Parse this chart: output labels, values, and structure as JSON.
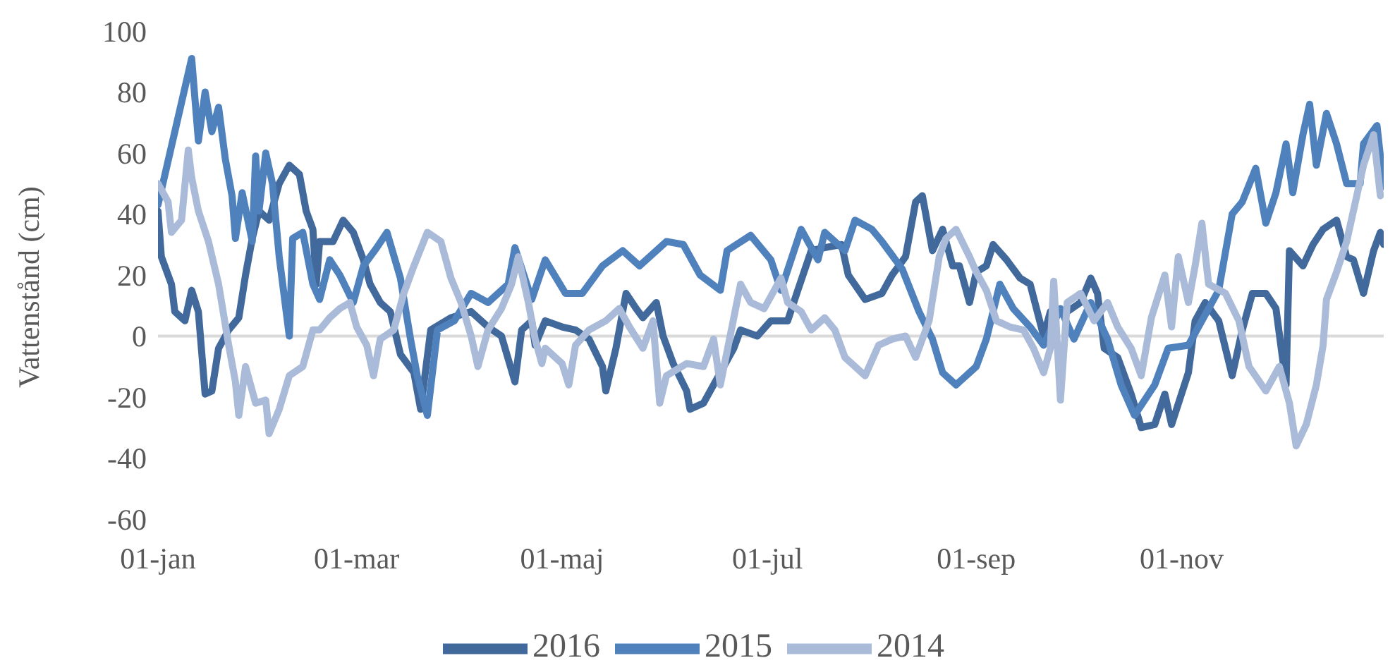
{
  "chart_data": {
    "type": "line",
    "ylabel": "Vattenstånd (cm)",
    "xlim": [
      "--01-01",
      "--12-31"
    ],
    "xticks": [
      {
        "value": "--01-01",
        "label": "01-jan"
      },
      {
        "value": "--03-01",
        "label": "01-mar"
      },
      {
        "value": "--05-01",
        "label": "01-maj"
      },
      {
        "value": "--07-01",
        "label": "01-jul"
      },
      {
        "value": "--09-01",
        "label": "01-sep"
      },
      {
        "value": "--11-01",
        "label": "01-nov"
      }
    ],
    "ylim": [
      -60,
      100
    ],
    "yticks": [
      -60,
      -40,
      -20,
      0,
      20,
      40,
      60,
      80,
      100
    ],
    "grid": false,
    "legend": "bottom",
    "marker": "none",
    "line_style": "solid",
    "ref_lines": [
      {
        "axis": "y",
        "value": 0,
        "color": "#d9d9d9"
      }
    ],
    "series": [
      {
        "name": "2016",
        "color": "#41699c",
        "x": [
          "--01-01",
          "--01-02",
          "--01-05",
          "--01-06",
          "--01-09",
          "--01-11",
          "--01-13",
          "--01-15",
          "--01-17",
          "--01-19",
          "--01-22",
          "--01-25",
          "--01-27",
          "--01-29",
          "--01-31",
          "--02-03",
          "--02-06",
          "--02-09",
          "--02-12",
          "--02-14",
          "--02-16",
          "--02-17",
          "--02-18",
          "--02-22",
          "--02-25",
          "--02-28",
          "--03-03",
          "--03-05",
          "--03-08",
          "--03-11",
          "--03-14",
          "--03-18",
          "--03-20",
          "--03-23",
          "--03-29",
          "--04-04",
          "--04-09",
          "--04-13",
          "--04-17",
          "--04-19",
          "--04-22",
          "--04-23",
          "--04-26",
          "--05-01",
          "--05-05",
          "--05-09",
          "--05-13",
          "--05-14",
          "--05-17",
          "--05-20",
          "--05-23",
          "--05-25",
          "--05-29",
          "--05-31",
          "--06-03",
          "--06-07",
          "--06-08",
          "--06-12",
          "--06-17",
          "--06-21",
          "--06-23",
          "--06-28",
          "--07-02",
          "--07-07",
          "--07-10",
          "--07-14",
          "--07-18",
          "--07-23",
          "--07-25",
          "--07-30",
          "--08-04",
          "--08-07",
          "--08-11",
          "--08-14",
          "--08-16",
          "--08-19",
          "--08-22",
          "--08-25",
          "--08-27",
          "--08-30",
          "--09-01",
          "--09-04",
          "--09-06",
          "--09-10",
          "--09-14",
          "--09-17",
          "--09-21",
          "--09-23",
          "--09-28",
          "--10-02",
          "--10-05",
          "--10-07",
          "--10-09",
          "--10-13",
          "--10-17",
          "--10-20",
          "--10-24",
          "--10-27",
          "--10-29",
          "--11-03",
          "--11-05",
          "--11-08",
          "--11-12",
          "--11-16",
          "--11-19",
          "--11-22",
          "--11-26",
          "--11-29",
          "--12-02",
          "--12-03",
          "--12-07",
          "--12-10",
          "--12-13",
          "--12-17",
          "--12-20",
          "--12-22",
          "--12-25",
          "--12-28",
          "--12-30",
          "--12-31"
        ],
        "values": [
          41,
          26,
          17,
          8,
          5,
          15,
          8,
          -19,
          -18,
          -4,
          2,
          6,
          20,
          32,
          41,
          38,
          50,
          56,
          53,
          41,
          35,
          17,
          31,
          31,
          38,
          34,
          25,
          17,
          11,
          8,
          -6,
          -12,
          -24,
          2,
          6,
          8,
          3,
          0,
          -15,
          2,
          5,
          -3,
          5,
          3,
          2,
          -1,
          -10,
          -18,
          -4,
          14,
          9,
          6,
          11,
          0,
          -9,
          -18,
          -24,
          -22,
          -12,
          -4,
          2,
          0,
          5,
          5,
          15,
          28,
          29,
          30,
          20,
          12,
          14,
          20,
          26,
          44,
          46,
          28,
          35,
          23,
          23,
          11,
          21,
          23,
          30,
          25,
          19,
          17,
          0,
          8,
          8,
          11,
          19,
          14,
          -4,
          -7,
          -19,
          -30,
          -29,
          -19,
          -29,
          -12,
          5,
          11,
          5,
          -13,
          2,
          14,
          14,
          9,
          -16,
          28,
          23,
          30,
          35,
          38,
          26,
          25,
          14,
          28,
          34,
          30
        ]
      },
      {
        "name": "2015",
        "color": "#4f81bd",
        "x": [
          "--01-01",
          "--01-11",
          "--01-13",
          "--01-15",
          "--01-17",
          "--01-19",
          "--01-21",
          "--01-23",
          "--01-24",
          "--01-26",
          "--01-29",
          "--01-30",
          "--01-31",
          "--02-02",
          "--02-04",
          "--02-06",
          "--02-09",
          "--02-10",
          "--02-13",
          "--02-16",
          "--02-18",
          "--02-21",
          "--02-24",
          "--02-28",
          "--03-03",
          "--03-07",
          "--03-10",
          "--03-14",
          "--03-17",
          "--03-19",
          "--03-22",
          "--03-25",
          "--03-30",
          "--04-04",
          "--04-09",
          "--04-15",
          "--04-17",
          "--04-22",
          "--04-26",
          "--05-02",
          "--05-07",
          "--05-13",
          "--05-19",
          "--05-24",
          "--06-01",
          "--06-06",
          "--06-11",
          "--06-17",
          "--06-19",
          "--06-26",
          "--07-02",
          "--07-05",
          "--07-11",
          "--07-16",
          "--07-18",
          "--07-24",
          "--07-27",
          "--08-01",
          "--08-04",
          "--08-10",
          "--08-15",
          "--08-19",
          "--08-22",
          "--08-26",
          "--08-27",
          "--09-01",
          "--09-04",
          "--09-06",
          "--09-08",
          "--09-12",
          "--09-17",
          "--09-21",
          "--09-26",
          "--09-30",
          "--10-05",
          "--10-10",
          "--10-14",
          "--10-18",
          "--10-24",
          "--10-28",
          "--11-03",
          "--11-07",
          "--11-12",
          "--11-16",
          "--11-19",
          "--11-23",
          "--11-26",
          "--11-29",
          "--12-02",
          "--12-04",
          "--12-07",
          "--12-09",
          "--12-11",
          "--12-14",
          "--12-17",
          "--12-20",
          "--12-24",
          "--12-25",
          "--12-29",
          "--12-31"
        ],
        "values": [
          43,
          91,
          64,
          80,
          67,
          75,
          58,
          46,
          32,
          47,
          31,
          59,
          41,
          60,
          50,
          26,
          0,
          32,
          34,
          17,
          12,
          25,
          20,
          11,
          23,
          29,
          34,
          19,
          -1,
          -13,
          -26,
          2,
          5,
          14,
          11,
          17,
          29,
          12,
          25,
          14,
          14,
          23,
          28,
          23,
          31,
          30,
          20,
          15,
          28,
          33,
          25,
          15,
          35,
          25,
          34,
          28,
          38,
          35,
          31,
          22,
          8,
          -1,
          -12,
          -16,
          -15,
          -10,
          -1,
          8,
          17,
          9,
          3,
          -3,
          9,
          -1,
          11,
          -1,
          -16,
          -26,
          -16,
          -4,
          -3,
          5,
          15,
          40,
          44,
          55,
          37,
          47,
          63,
          47,
          66,
          76,
          56,
          73,
          63,
          50,
          50,
          63,
          69,
          49
        ]
      },
      {
        "name": "2014",
        "color": "#aabbd9",
        "x": [
          "--01-01",
          "--01-04",
          "--01-05",
          "--01-08",
          "--01-10",
          "--01-11",
          "--01-13",
          "--01-16",
          "--01-19",
          "--01-22",
          "--01-24",
          "--01-25",
          "--01-27",
          "--01-30",
          "--02-02",
          "--02-03",
          "--02-06",
          "--02-09",
          "--02-13",
          "--02-16",
          "--02-18",
          "--02-21",
          "--02-24",
          "--02-27",
          "--03-01",
          "--03-04",
          "--03-06",
          "--03-08",
          "--03-12",
          "--03-15",
          "--03-18",
          "--03-22",
          "--03-26",
          "--03-29",
          "--04-01",
          "--04-04",
          "--04-06",
          "--04-09",
          "--04-13",
          "--04-16",
          "--04-18",
          "--04-21",
          "--04-23",
          "--04-25",
          "--04-26",
          "--05-01",
          "--05-03",
          "--05-05",
          "--05-09",
          "--05-14",
          "--05-18",
          "--05-21",
          "--05-25",
          "--05-28",
          "--05-30",
          "--06-01",
          "--06-07",
          "--06-12",
          "--06-15",
          "--06-17",
          "--06-21",
          "--06-23",
          "--06-26",
          "--06-30",
          "--07-05",
          "--07-07",
          "--07-11",
          "--07-14",
          "--07-18",
          "--07-21",
          "--07-24",
          "--07-30",
          "--08-03",
          "--08-07",
          "--08-11",
          "--08-14",
          "--08-18",
          "--08-21",
          "--08-23",
          "--08-26",
          "--08-30",
          "--09-01",
          "--09-04",
          "--09-07",
          "--09-11",
          "--09-15",
          "--09-18",
          "--09-21",
          "--09-23",
          "--09-24",
          "--09-26",
          "--09-28",
          "--10-02",
          "--10-06",
          "--10-10",
          "--10-13",
          "--10-17",
          "--10-20",
          "--10-23",
          "--10-27",
          "--10-29",
          "--10-31",
          "--11-03",
          "--11-05",
          "--11-07",
          "--11-09",
          "--11-14",
          "--11-18",
          "--11-21",
          "--11-26",
          "--11-30",
          "--12-03",
          "--12-05",
          "--12-08",
          "--12-11",
          "--12-13",
          "--12-14",
          "--12-17",
          "--12-20",
          "--12-22",
          "--12-25",
          "--12-28",
          "--12-30"
        ],
        "values": [
          50,
          44,
          34,
          38,
          61,
          52,
          41,
          31,
          17,
          -3,
          -15,
          -26,
          -10,
          -22,
          -21,
          -32,
          -24,
          -13,
          -10,
          2,
          2,
          6,
          9,
          11,
          3,
          -3,
          -13,
          -1,
          2,
          14,
          23,
          34,
          31,
          19,
          11,
          0,
          -10,
          2,
          9,
          17,
          26,
          11,
          -1,
          -9,
          -4,
          -9,
          -16,
          -3,
          2,
          5,
          9,
          3,
          -4,
          5,
          -22,
          -13,
          -9,
          -10,
          -1,
          -16,
          6,
          17,
          11,
          9,
          19,
          11,
          8,
          2,
          6,
          2,
          -7,
          -13,
          -3,
          -1,
          0,
          -7,
          5,
          26,
          32,
          35,
          26,
          21,
          15,
          5,
          3,
          2,
          -4,
          -12,
          -4,
          18,
          -21,
          11,
          14,
          5,
          11,
          3,
          -4,
          -13,
          6,
          20,
          3,
          26,
          11,
          23,
          37,
          17,
          14,
          5,
          -10,
          -18,
          -10,
          -22,
          -36,
          -29,
          -16,
          -3,
          12,
          21,
          31,
          41,
          56,
          66,
          46
        ]
      }
    ]
  }
}
